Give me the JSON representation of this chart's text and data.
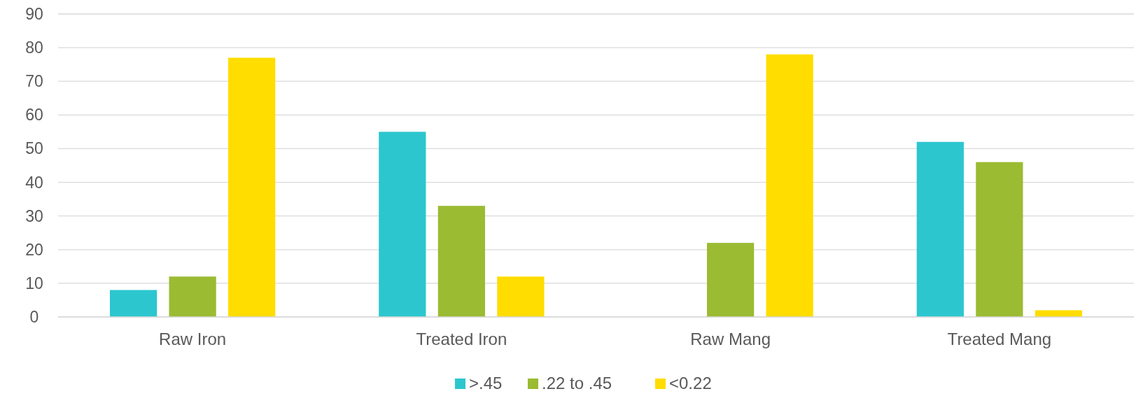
{
  "chart_data": {
    "type": "bar",
    "categories": [
      "Raw Iron",
      "Treated Iron",
      "Raw Mang",
      "Treated Mang"
    ],
    "series": [
      {
        "name": ">.45",
        "color": "#2cc6cf",
        "values": [
          8,
          55,
          0,
          52
        ]
      },
      {
        "name": ".22 to .45",
        "color": "#9bbb33",
        "values": [
          12,
          33,
          22,
          46
        ]
      },
      {
        "name": "<0.22",
        "color": "#ffdd00",
        "values": [
          77,
          12,
          78,
          2
        ]
      }
    ],
    "ylim": [
      0,
      90
    ],
    "yticks": [
      0,
      10,
      20,
      30,
      40,
      50,
      60,
      70,
      80,
      90
    ],
    "grid": "y",
    "legend": "bottom"
  }
}
